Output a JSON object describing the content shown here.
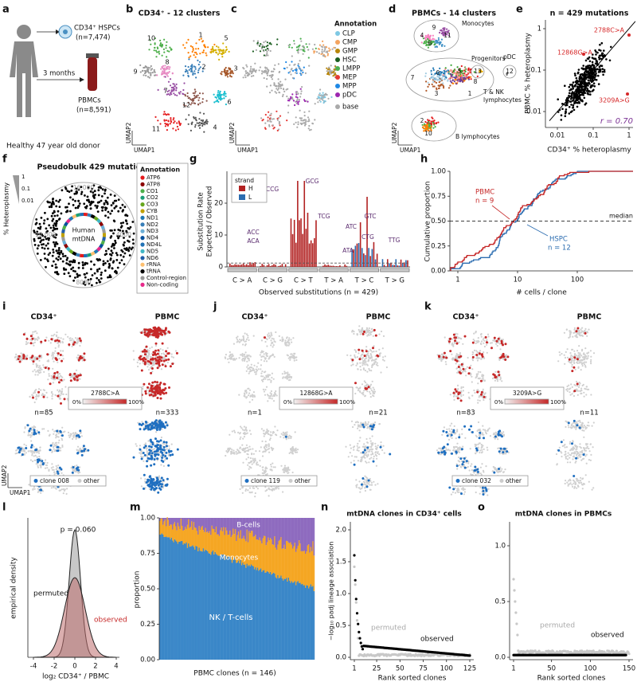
{
  "letters": [
    "a",
    "b",
    "c",
    "d",
    "e",
    "f",
    "g",
    "h",
    "i",
    "j",
    "k",
    "l",
    "m",
    "n",
    "o"
  ],
  "a": {
    "hspc": "CD34⁺ HSPCs",
    "hspc_n": "(n=7,474)",
    "time": "3 months",
    "pbmc": "PBMCs",
    "pbmc_n": "(n=8,591)",
    "donor": "Healthy 47 year old donor"
  },
  "b": {
    "title": "CD34⁺ - 12 clusters",
    "clusters": [
      "1",
      "2",
      "3",
      "4",
      "5",
      "6",
      "7",
      "8",
      "9",
      "10",
      "11",
      "12"
    ],
    "umap_y": "UMAP2",
    "umap_x": "UMAP1"
  },
  "c": {
    "legend_title": "Annotation",
    "items": [
      "CLP",
      "CMP",
      "GMP",
      "HSC",
      "LMPP",
      "MEP",
      "MPP",
      "pDC"
    ],
    "base": "base",
    "umap_y": "UMAP2",
    "umap_x": "UMAP1"
  },
  "d": {
    "title": "PBMCs - 14 clusters",
    "groups": [
      "Monocytes",
      "Progenitors",
      "pDC",
      "T & NK",
      "lymphocytes",
      "B lymphocytes"
    ],
    "clusters": [
      "0",
      "1",
      "2",
      "3",
      "4",
      "5",
      "6",
      "7",
      "8",
      "9",
      "10",
      "11",
      "12",
      "13"
    ],
    "umap_y": "UMAP2",
    "umap_x": "UMAP1"
  },
  "e": {
    "title": "n = 429 mutations",
    "y_label": "PBMC % heteroplasmy",
    "x_label": "CD34⁺ % heteroplasmy",
    "x_ticks": [
      "0.01",
      "0.1",
      "1"
    ],
    "y_ticks": [
      "0.01",
      "0.1",
      "1"
    ],
    "variants": [
      "2788C>A",
      "12868G>A",
      "3209A>G"
    ],
    "r": "r = 0.70"
  },
  "f": {
    "title": "Pseudobulk 429 mutations",
    "y_label": "% Heteroplasmy",
    "y_ticks": [
      "1",
      "0.1",
      "0.01"
    ],
    "positions": [
      "16,000",
      "4000",
      "8000",
      "12,000"
    ],
    "center": [
      "Human",
      "mtDNA"
    ],
    "legend_title": "Annotation",
    "legend": [
      "ATP6",
      "ATP8",
      "CO1",
      "CO2",
      "CO3",
      "CYB",
      "ND1",
      "ND2",
      "ND3",
      "ND4",
      "ND4L",
      "ND5",
      "ND6",
      "rRNA",
      "tRNA",
      "Control-region",
      "Non-coding"
    ]
  },
  "g": {
    "legend_title": "strand",
    "strands": [
      "H",
      "L"
    ],
    "y_label": [
      "Substitution Rate",
      "Expected / Observed"
    ],
    "y_ticks": [
      "0",
      "10",
      "20"
    ],
    "callouts": [
      "CCG",
      "GCG",
      "TCG",
      "ACC",
      "ACA",
      "ATC",
      "GTC",
      "CTG",
      "ATA",
      "TTG"
    ],
    "categories": [
      "C > A",
      "C > G",
      "C > T",
      "T > A",
      "T > C",
      "T > G"
    ],
    "x_label": "Observed substitutions (n = 429)"
  },
  "h": {
    "y_label": "Cumulative proportion",
    "y_ticks": [
      "0.00",
      "0.25",
      "0.50",
      "0.75",
      "1.00"
    ],
    "x_ticks": [
      "1",
      "10",
      "100"
    ],
    "x_label": "# cells / clone",
    "pbmc": "PBMC",
    "pbmc_n": "n = 9",
    "hspc": "HSPC",
    "hspc_n": "n = 12",
    "median": "median"
  },
  "i": {
    "cd34": "CD34⁺",
    "pbmc": "PBMC",
    "variant": "2788C>A",
    "scale": [
      "0%",
      "100%"
    ],
    "n_cd34": "n=85",
    "n_pbmc": "n=333",
    "clone": "clone 008",
    "other": "other",
    "umap_y": "UMAP2",
    "umap_x": "UMAP1"
  },
  "j": {
    "cd34": "CD34⁺",
    "pbmc": "PBMC",
    "variant": "12868G>A",
    "scale": [
      "0%",
      "100%"
    ],
    "n_cd34": "n=1",
    "n_pbmc": "n=21",
    "clone": "clone 119",
    "other": "other"
  },
  "k": {
    "cd34": "CD34⁺",
    "pbmc": "PBMC",
    "variant": "3209A>G",
    "scale": [
      "0%",
      "100%"
    ],
    "n_cd34": "n=83",
    "n_pbmc": "n=11",
    "clone": "clone 032",
    "other": "other"
  },
  "l": {
    "p": "p = 0.060",
    "permuted": "permuted",
    "observed": "observed",
    "y_label": "empirical density",
    "x_label": "log₂ CD34⁺ / PBMC",
    "x_ticks": [
      "-4",
      "-2",
      "0",
      "2",
      "4"
    ]
  },
  "m": {
    "groups": [
      "B-cells",
      "Monocytes",
      "NK / T-cells"
    ],
    "y_label": "proportion",
    "y_ticks": [
      "0.00",
      "0.25",
      "0.50",
      "0.75",
      "1.00"
    ],
    "x_label": "PBMC clones (n = 146)"
  },
  "n": {
    "title": "mtDNA clones in CD34⁺ cells",
    "y_label": "−log₁₀ padj lineage association",
    "y_ticks": [
      "0.0",
      "0.5",
      "1.0",
      "1.5",
      "2.0"
    ],
    "permuted": "permuted",
    "observed": "observed",
    "x_label": "Rank sorted clones",
    "x_ticks": [
      "1",
      "25",
      "50",
      "75",
      "100",
      "125"
    ]
  },
  "o": {
    "title": "mtDNA clones in PBMCs",
    "y_ticks": [
      "0.0",
      "0.5",
      "1.0"
    ],
    "permuted": "permuted",
    "observed": "observed",
    "x_label": "Rank sorted clones",
    "x_ticks": [
      "1",
      "50",
      "100",
      "150"
    ]
  }
}
